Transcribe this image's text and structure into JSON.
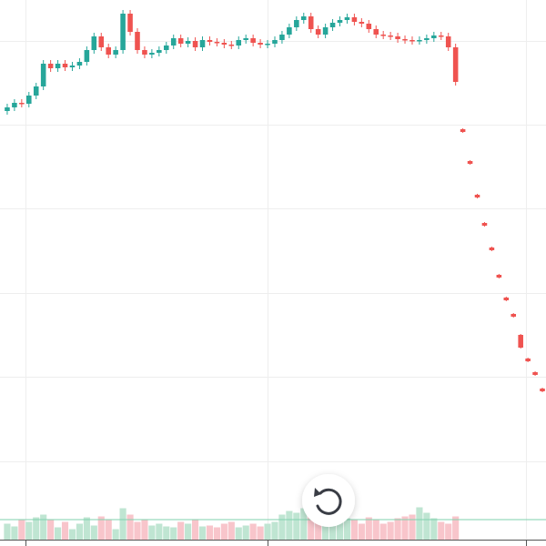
{
  "chart_data": {
    "type": "candlestick",
    "x": [
      0,
      1,
      2,
      3,
      4,
      5,
      6,
      7,
      8,
      9,
      10,
      11,
      12,
      13,
      14,
      15,
      16,
      17,
      18,
      19,
      20,
      21,
      22,
      23,
      24,
      25,
      26,
      27,
      28,
      29,
      30,
      31,
      32,
      33,
      34,
      35,
      36,
      37,
      38,
      39,
      40,
      41,
      42,
      43,
      44,
      45,
      46,
      47,
      48,
      49,
      50,
      51,
      52,
      53,
      54,
      55,
      56,
      57,
      58,
      59,
      60,
      61,
      62,
      63,
      64,
      65,
      66,
      67,
      68,
      69,
      70,
      71,
      72,
      73,
      74
    ],
    "open": [
      478,
      482,
      487,
      486,
      495,
      505,
      530,
      525,
      530,
      526,
      528,
      532,
      545,
      560,
      548,
      540,
      545,
      585,
      565,
      545,
      540,
      542,
      545,
      550,
      558,
      552,
      555,
      548,
      556,
      554,
      553,
      551,
      550,
      556,
      558,
      553,
      551,
      552,
      556,
      562,
      570,
      578,
      582,
      568,
      562,
      570,
      575,
      578,
      581,
      576,
      574,
      568,
      562,
      561,
      560,
      557,
      556,
      555,
      556,
      558,
      561,
      560,
      548,
      458,
      423,
      386,
      355,
      328,
      298,
      273,
      255,
      232,
      206,
      191,
      173
    ],
    "high": [
      486,
      491,
      491,
      499,
      509,
      534,
      534,
      534,
      534,
      532,
      536,
      549,
      564,
      564,
      552,
      549,
      589,
      589,
      569,
      549,
      546,
      549,
      554,
      562,
      562,
      559,
      559,
      560,
      560,
      558,
      557,
      555,
      560,
      562,
      562,
      557,
      556,
      560,
      566,
      574,
      582,
      586,
      586,
      572,
      574,
      579,
      582,
      585,
      585,
      580,
      578,
      572,
      566,
      565,
      564,
      561,
      560,
      560,
      562,
      565,
      565,
      564,
      552,
      459,
      424,
      387,
      356,
      329,
      299,
      274,
      256,
      233,
      207,
      192,
      174
    ],
    "low": [
      474,
      478,
      482,
      482,
      491,
      501,
      521,
      521,
      522,
      522,
      524,
      528,
      541,
      544,
      536,
      536,
      541,
      561,
      541,
      536,
      536,
      538,
      541,
      546,
      548,
      548,
      544,
      544,
      550,
      549,
      547,
      546,
      546,
      552,
      549,
      547,
      547,
      548,
      552,
      558,
      566,
      574,
      564,
      558,
      558,
      566,
      571,
      574,
      572,
      570,
      564,
      558,
      557,
      556,
      553,
      552,
      551,
      551,
      552,
      554,
      556,
      544,
      506,
      454,
      419,
      382,
      351,
      324,
      294,
      269,
      251,
      217,
      202,
      187,
      169
    ],
    "close": [
      482,
      487,
      486,
      495,
      505,
      530,
      525,
      530,
      526,
      528,
      532,
      545,
      560,
      548,
      540,
      545,
      585,
      565,
      545,
      540,
      542,
      545,
      550,
      558,
      552,
      555,
      548,
      556,
      554,
      553,
      551,
      550,
      556,
      558,
      553,
      551,
      552,
      556,
      562,
      570,
      578,
      582,
      568,
      562,
      570,
      575,
      578,
      581,
      576,
      574,
      568,
      562,
      561,
      560,
      557,
      556,
      555,
      556,
      558,
      561,
      560,
      548,
      510,
      455,
      420,
      383,
      352,
      325,
      295,
      270,
      252,
      218,
      203,
      188,
      170
    ],
    "volume": [
      18,
      15,
      22,
      20,
      25,
      28,
      22,
      14,
      20,
      12,
      18,
      25,
      16,
      26,
      22,
      12,
      35,
      28,
      20,
      22,
      16,
      18,
      15,
      14,
      20,
      18,
      22,
      15,
      16,
      14,
      18,
      20,
      14,
      16,
      18,
      15,
      18,
      20,
      28,
      32,
      30,
      35,
      30,
      25,
      22,
      18,
      20,
      24,
      22,
      18,
      25,
      22,
      18,
      20,
      24,
      26,
      28,
      36,
      30,
      24,
      20,
      18,
      26,
      null,
      null,
      null,
      null,
      null,
      null,
      null,
      null,
      null,
      null,
      null,
      null
    ],
    "up_color": "#26a69a",
    "down_color": "#ef5350",
    "volume_up_color": "#bfe5d2",
    "volume_down_color": "#f8c5cb",
    "xlim": [
      -1,
      74.5
    ],
    "xticks": [
      2.5,
      36,
      71.7
    ],
    "ylim": [
      0,
      600
    ],
    "yticks": [
      93,
      186,
      278,
      371,
      463,
      555
    ],
    "volume_ylim": [
      0,
      100
    ],
    "grid": true
  }
}
